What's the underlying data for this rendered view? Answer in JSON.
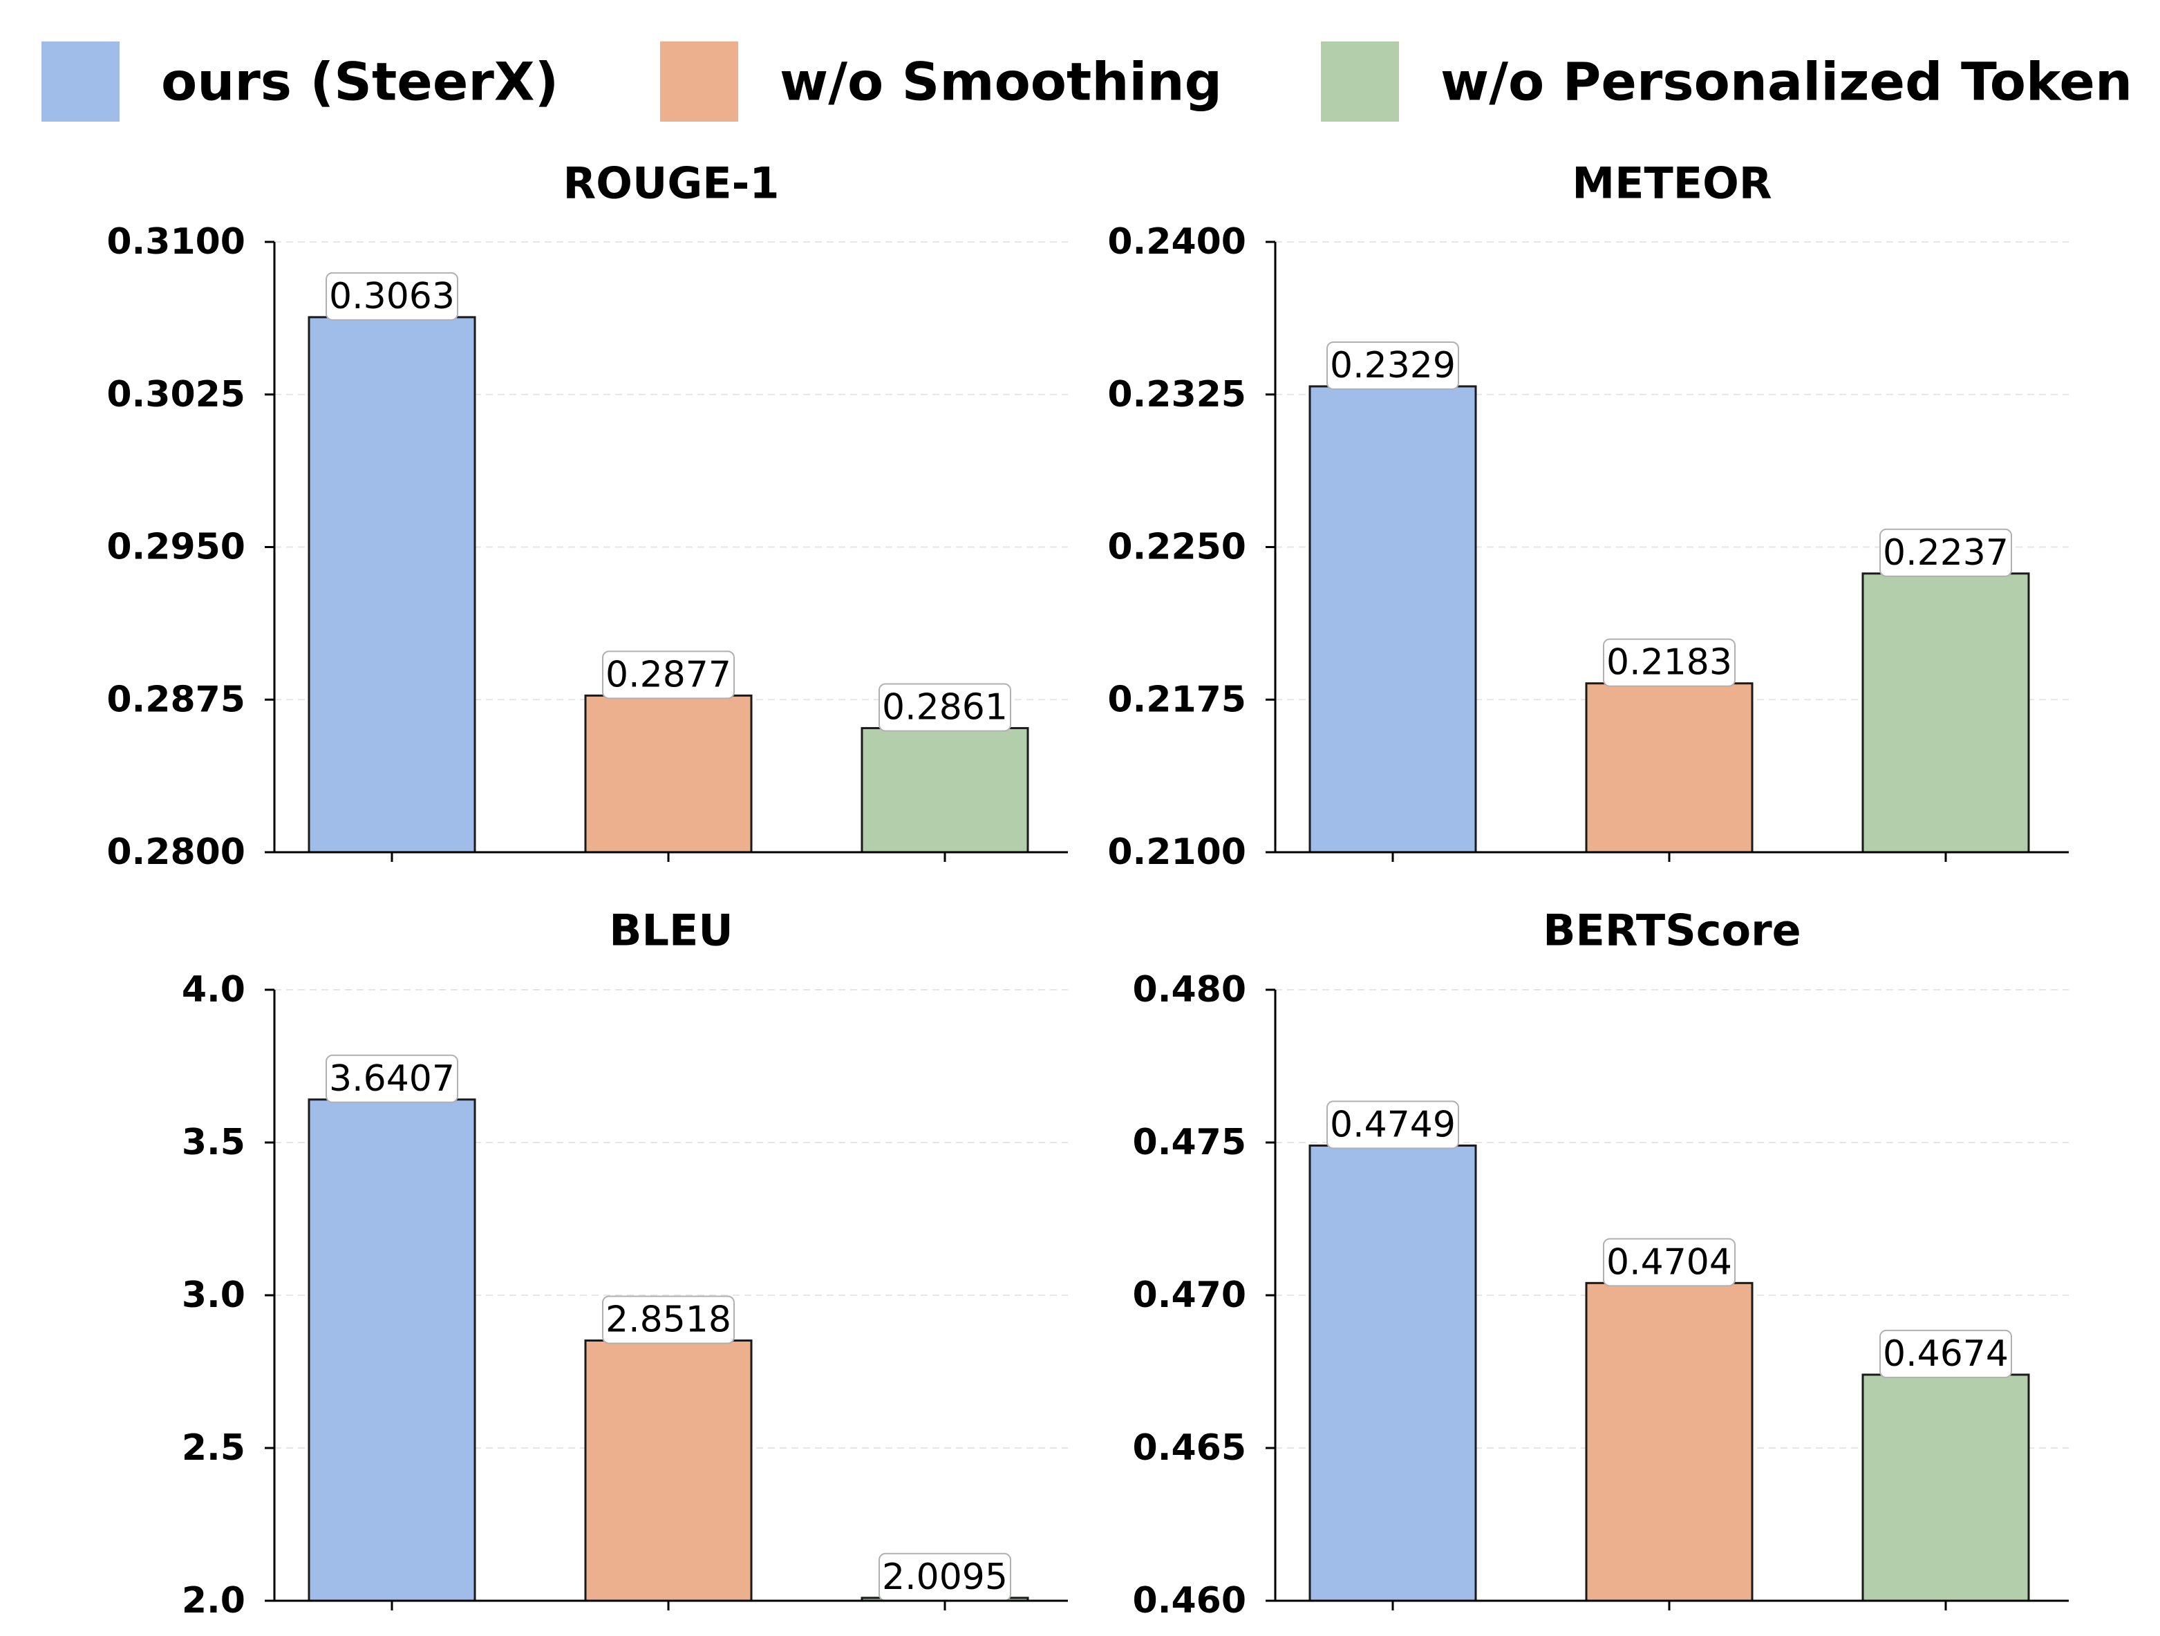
{
  "chart_data": [
    {
      "type": "bar",
      "title": "ROUGE-1",
      "categories": [
        "ours (SteerX)",
        "w/o Smoothing",
        "w/o Personalized Token"
      ],
      "values": [
        0.3063,
        0.2877,
        0.2861
      ],
      "value_labels": [
        "0.3063",
        "0.2877",
        "0.2861"
      ],
      "ylim": [
        0.28,
        0.31
      ],
      "yticks": [
        "0.2800",
        "0.2875",
        "0.2950",
        "0.3025",
        "0.3100"
      ],
      "grid": true
    },
    {
      "type": "bar",
      "title": "METEOR",
      "categories": [
        "ours (SteerX)",
        "w/o Smoothing",
        "w/o Personalized Token"
      ],
      "values": [
        0.2329,
        0.2183,
        0.2237
      ],
      "value_labels": [
        "0.2329",
        "0.2183",
        "0.2237"
      ],
      "ylim": [
        0.21,
        0.24
      ],
      "yticks": [
        "0.2100",
        "0.2175",
        "0.2250",
        "0.2325",
        "0.2400"
      ],
      "grid": true
    },
    {
      "type": "bar",
      "title": "BLEU",
      "categories": [
        "ours (SteerX)",
        "w/o Smoothing",
        "w/o Personalized Token"
      ],
      "values": [
        3.6407,
        2.8518,
        2.0095
      ],
      "value_labels": [
        "3.6407",
        "2.8518",
        "2.0095"
      ],
      "ylim": [
        2.0,
        4.0
      ],
      "yticks": [
        "2.0",
        "2.5",
        "3.0",
        "3.5",
        "4.0"
      ],
      "grid": true
    },
    {
      "type": "bar",
      "title": "BERTScore",
      "categories": [
        "ours (SteerX)",
        "w/o Smoothing",
        "w/o Personalized Token"
      ],
      "values": [
        0.4749,
        0.4704,
        0.4674
      ],
      "value_labels": [
        "0.4749",
        "0.4704",
        "0.4674"
      ],
      "ylim": [
        0.46,
        0.48
      ],
      "yticks": [
        "0.460",
        "0.465",
        "0.470",
        "0.475",
        "0.480"
      ],
      "grid": true
    }
  ],
  "legend": {
    "position": "top",
    "entries": [
      {
        "label": "ours (SteerX)",
        "color": "#a0bde9"
      },
      {
        "label": "w/o Smoothing",
        "color": "#edb08e"
      },
      {
        "label": "w/o Personalized Token",
        "color": "#b2ceaa"
      }
    ]
  }
}
